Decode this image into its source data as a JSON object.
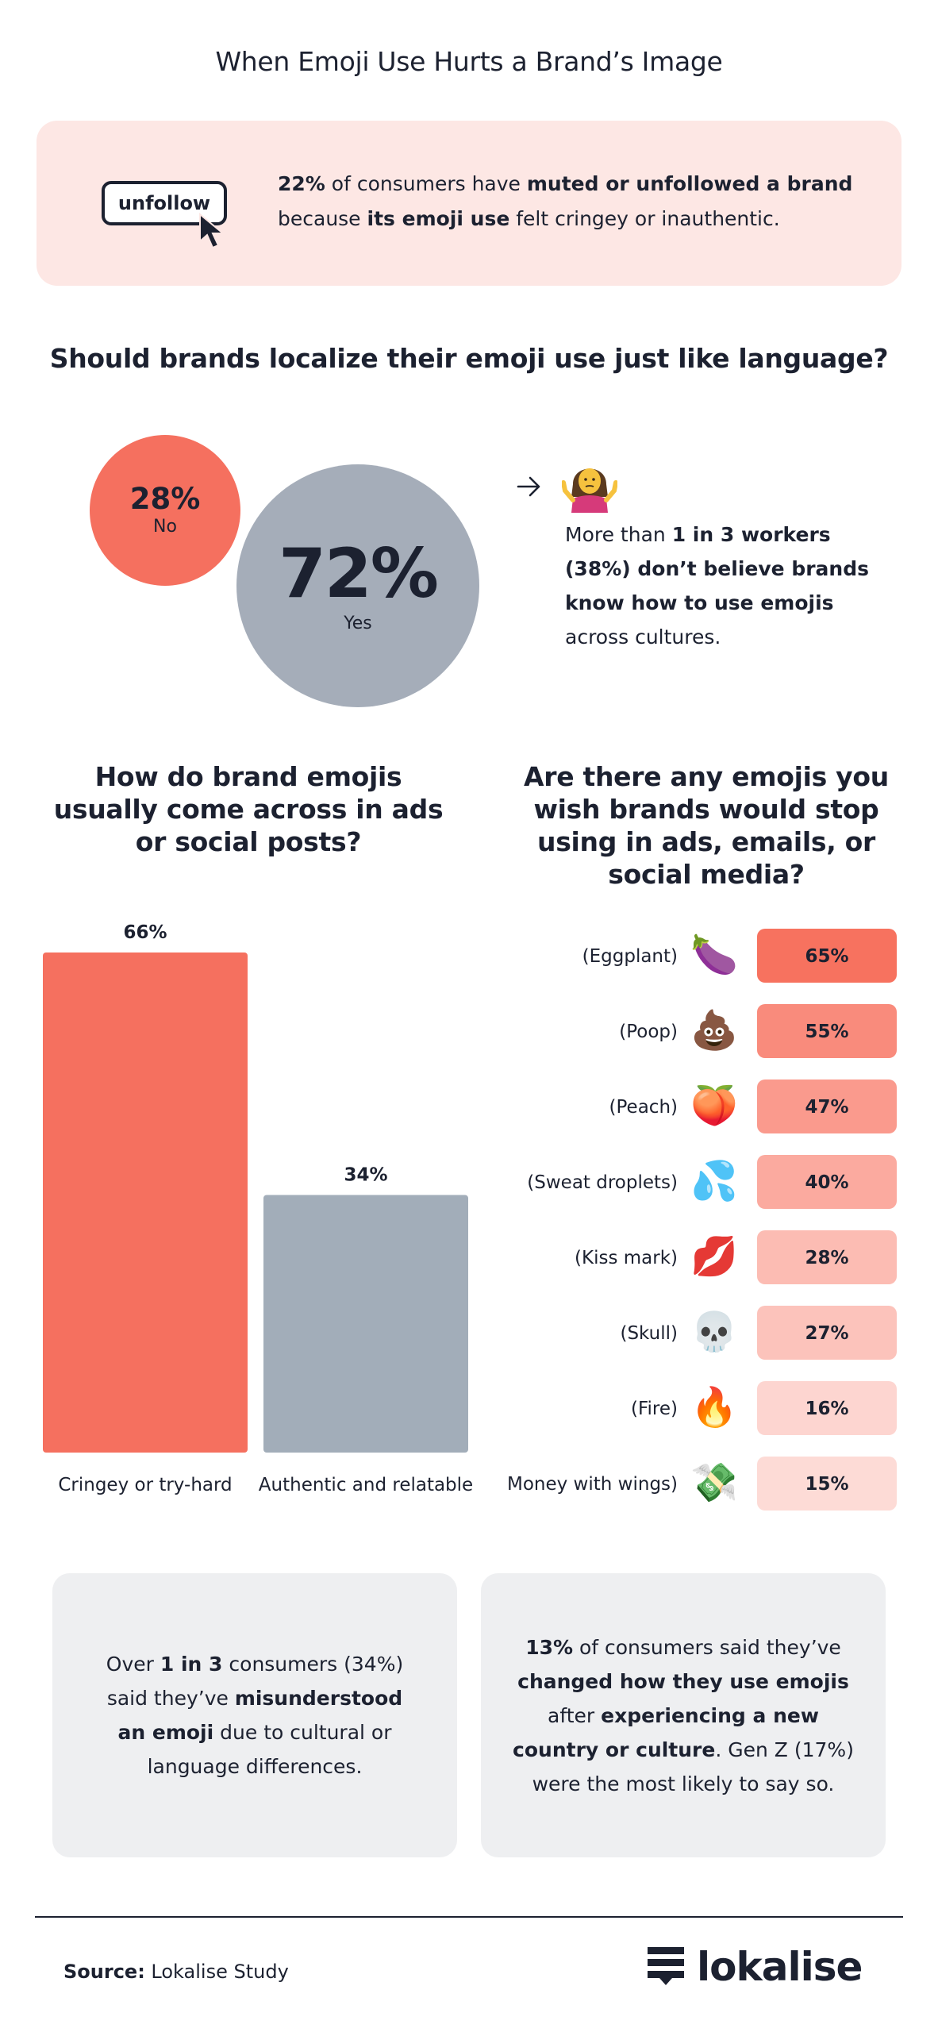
{
  "title": "When Emoji Use Hurts a Brand’s Image",
  "unfollow_stat": {
    "button_label": "unfollow",
    "value": "22%",
    "text_1": " of consumers have ",
    "bold_1": "muted or unfollowed a brand",
    "text_2": " because ",
    "bold_2": "its emoji use",
    "text_3": " felt cringey or inauthentic."
  },
  "localize": {
    "question": "Should brands localize their emoji use just like language?",
    "no_value": "28%",
    "no_label": "No",
    "yes_value": "72%",
    "yes_label": "Yes",
    "colors": {
      "no": "#f5705f",
      "yes": "#a5adb9"
    }
  },
  "workers_stat": {
    "icon": "person-shrugging-icon",
    "text_1": "More than ",
    "bold_1": "1 in 3 workers (38%) don’t believe brands know how to use emojis",
    "text_2": " across cultures."
  },
  "bar_question": "How do brand emojis usually come across in ads or social posts?",
  "stop_question": "Are there any emojis you wish brands would stop using in ads, emails, or social media?",
  "chart_data": [
    {
      "type": "bar",
      "categories": [
        "Cringey or try-hard",
        "Authentic and relatable"
      ],
      "values": [
        66,
        34
      ],
      "value_labels": [
        "66%",
        "34%"
      ],
      "ylim": [
        0,
        66
      ],
      "grid": false,
      "colors": [
        "#f5705f",
        "#a2adb9"
      ]
    },
    {
      "type": "bar",
      "orientation": "horizontal",
      "categories": [
        "(Eggplant)",
        "(Poop)",
        "(Peach)",
        "(Sweat droplets)",
        "(Kiss mark)",
        "(Skull)",
        "(Fire)",
        "(Money with wings)"
      ],
      "emojis": [
        "🍆",
        "💩",
        "🍑",
        "💦",
        "💋",
        "💀",
        "🔥",
        "💸"
      ],
      "values": [
        65,
        55,
        47,
        40,
        28,
        27,
        16,
        15
      ],
      "value_labels": [
        "65%",
        "55%",
        "47%",
        "40%",
        "28%",
        "27%",
        "16%",
        "15%"
      ],
      "grid": false,
      "colors": [
        "#f7725f",
        "#f98b7c",
        "#fa9a8d",
        "#fbaa9f",
        "#fcbcb3",
        "#fcc3bb",
        "#fdd5d0",
        "#fddbd6"
      ]
    }
  ],
  "misunderstood_stat": {
    "text_1": "Over ",
    "bold_1": "1 in 3",
    "text_2": " consumers (34%) said they’ve ",
    "bold_2": "misunderstood an emoji",
    "text_3": " due to cultural or language differences."
  },
  "changed_stat": {
    "bold_1": "13%",
    "text_1": " of consumers said they’ve ",
    "bold_2": "changed how they use emojis",
    "text_2": " after ",
    "bold_3": "experiencing a new country or culture",
    "text_3": ". Gen Z (17%) were the most likely to say so."
  },
  "footer": {
    "source_label": "Source:",
    "source_value": " Lokalise Study",
    "brand": "lokalise",
    "logo_icon": "lokalise-logo-icon"
  }
}
